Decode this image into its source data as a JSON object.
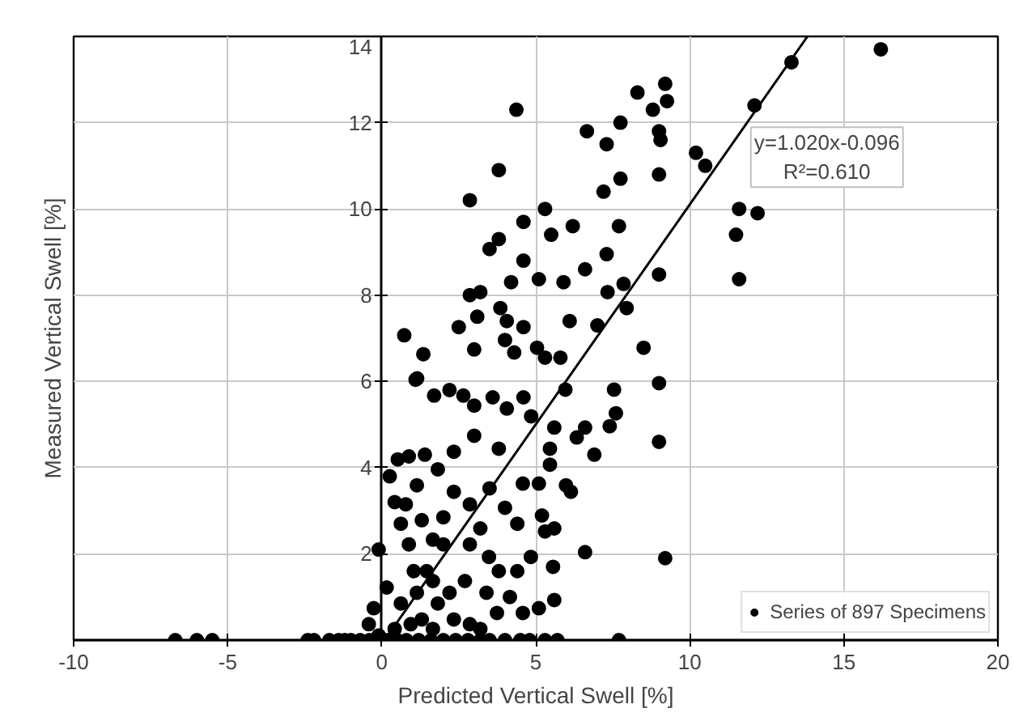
{
  "chart_data": {
    "type": "scatter",
    "xlabel": "Predicted Vertical Swell [%]",
    "ylabel": "Measured Vertical Swell [%]",
    "xlim": [
      -10,
      20
    ],
    "ylim": [
      0,
      14
    ],
    "xticks": [
      -10,
      -5,
      0,
      5,
      10,
      15,
      20
    ],
    "yticks": [
      2,
      4,
      6,
      8,
      10,
      12,
      14
    ],
    "grid": true,
    "legend": "bottom right",
    "marker": "circle",
    "annotations": [
      "y=1.020x-0.096",
      "R²=0.610"
    ],
    "series": [
      {
        "name": "Series of 897 Specimens",
        "color": "#000000",
        "x": [
          0.73,
          1.35,
          2.5,
          2.86,
          3.8,
          4.37,
          3.5,
          3.8,
          3.2,
          2.86,
          3.1,
          3.85,
          4.2,
          4.6,
          4.6,
          5.3,
          5.5,
          6.2,
          5.1,
          5.9,
          6.6,
          6.66,
          7.3,
          7.2,
          7.75,
          7.75,
          7.7,
          7.3,
          7.33,
          7.85,
          7.95,
          8.3,
          7.0,
          6.1,
          4.06,
          4.0,
          4.6,
          4.3,
          5.04,
          5.3,
          5.8,
          3.0,
          8.5,
          1.15,
          16.2,
          13.3,
          12.1,
          9.2,
          9.26,
          8.8,
          9.0,
          9.05,
          10.2,
          10.5,
          9.0,
          11.6,
          12.2,
          11.5,
          11.6,
          9.0,
          9.0,
          9.2,
          9.0,
          1.1,
          1.7,
          2.2,
          2.65,
          3.0,
          3.6,
          4.06,
          4.6,
          4.85,
          5.6,
          5.96,
          7.54,
          7.6,
          7.4,
          6.6,
          6.33,
          6.9,
          5.46,
          5.46,
          5.98,
          6.14,
          5.1,
          4.58,
          4.4,
          5.2,
          5.6,
          5.3,
          6.6,
          4.84,
          4.4,
          5.56,
          5.6,
          5.1,
          4.58,
          4.16,
          0.26,
          0.52,
          0.88,
          1.4,
          0.78,
          0.42,
          0.62,
          -0.1,
          0.16,
          0.88,
          1.3,
          2.34,
          3.0,
          3.8,
          3.5,
          4.0,
          2.34,
          1.82,
          2.86,
          2.0,
          2.86,
          3.48,
          3.8,
          3.4,
          3.74,
          1.46,
          1.14,
          0.62,
          -0.26,
          -0.42,
          1.82,
          2.34,
          2.86,
          3.2,
          0.94,
          1.66,
          0.42,
          -0.1,
          1.3,
          2.2,
          2.7,
          1.66,
          1.04,
          2.0,
          1.66,
          3.2,
          1.14,
          -6.7,
          -6.0,
          -5.5,
          -2.4,
          -2.2,
          -1.7,
          -1.4,
          -1.2,
          -1.0,
          -0.7,
          -0.4,
          0.2,
          0.5,
          0.8,
          1.2,
          1.6,
          2.0,
          2.4,
          2.8,
          3.2,
          3.5,
          4.0,
          4.5,
          4.8,
          5.3,
          5.7,
          7.7
        ],
        "values": [
          7.07,
          6.63,
          7.26,
          10.2,
          10.9,
          12.3,
          9.07,
          9.3,
          8.07,
          8.0,
          7.5,
          7.7,
          8.3,
          9.7,
          8.8,
          10.0,
          9.4,
          9.6,
          8.37,
          8.3,
          8.6,
          11.8,
          11.5,
          10.4,
          12.0,
          10.7,
          9.6,
          8.95,
          8.07,
          8.26,
          7.7,
          12.7,
          7.3,
          7.4,
          7.4,
          6.96,
          7.26,
          6.67,
          6.78,
          6.55,
          6.55,
          6.74,
          6.78,
          6.07,
          13.7,
          13.4,
          12.4,
          12.9,
          12.5,
          12.3,
          11.8,
          11.6,
          11.3,
          11.0,
          10.8,
          10.0,
          9.9,
          9.4,
          8.37,
          8.48,
          5.96,
          1.9,
          4.6,
          6.04,
          5.67,
          5.8,
          5.67,
          5.44,
          5.63,
          5.37,
          5.63,
          5.19,
          4.93,
          5.81,
          5.81,
          5.26,
          4.96,
          4.93,
          4.7,
          4.3,
          4.44,
          4.07,
          3.59,
          3.44,
          3.63,
          3.63,
          2.7,
          2.89,
          2.59,
          2.52,
          2.04,
          1.93,
          1.6,
          1.7,
          0.93,
          0.74,
          0.63,
          1.0,
          3.8,
          4.19,
          4.26,
          4.3,
          3.15,
          3.2,
          2.7,
          2.1,
          1.22,
          2.22,
          2.78,
          4.37,
          4.74,
          4.44,
          3.52,
          3.07,
          3.44,
          3.96,
          3.15,
          2.22,
          2.22,
          1.93,
          1.6,
          1.1,
          0.63,
          1.6,
          1.1,
          0.85,
          0.74,
          0.37,
          0.85,
          0.48,
          0.37,
          0.26,
          0.37,
          0.26,
          0.26,
          0.11,
          0.48,
          1.1,
          1.37,
          1.37,
          1.6,
          2.85,
          2.33,
          2.59,
          3.59,
          0,
          0,
          0,
          0,
          0,
          0,
          0,
          0,
          0,
          0,
          0,
          0,
          0,
          0,
          0,
          0,
          0,
          0,
          0,
          0,
          0,
          0,
          0,
          0,
          0,
          0,
          0
        ]
      },
      {
        "color": "#000000",
        "type": "line",
        "marker": "none",
        "x": [
          0.094,
          13.82
        ],
        "values": [
          0,
          14
        ]
      }
    ]
  }
}
